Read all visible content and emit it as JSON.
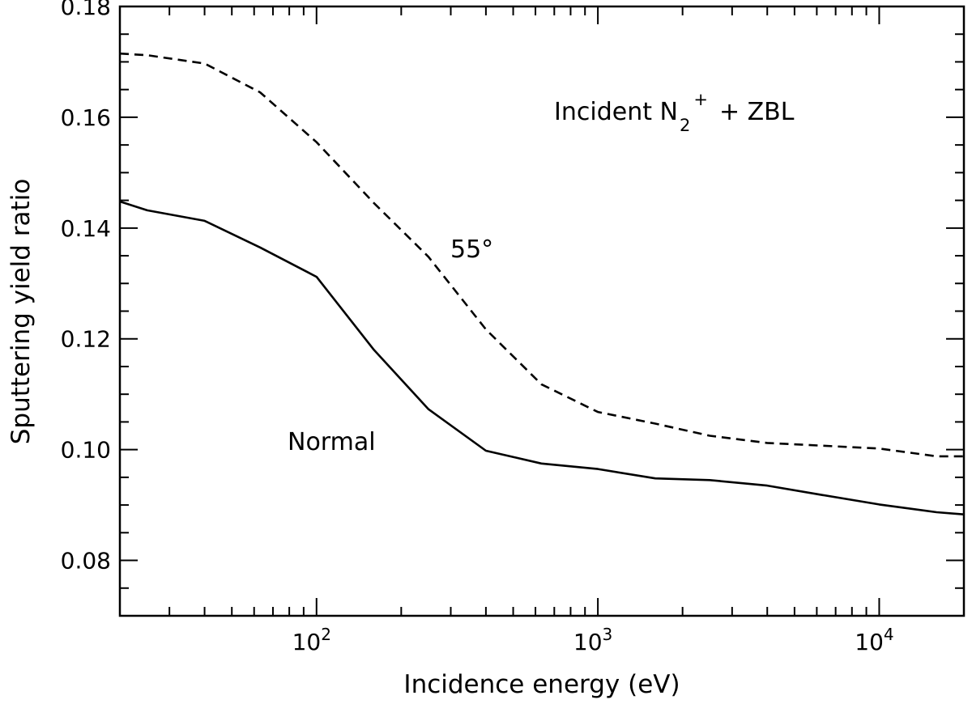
{
  "chart_data": {
    "type": "line",
    "title": "",
    "xlabel": "Incidence energy (eV)",
    "ylabel": "Sputtering yield ratio",
    "xscale": "log",
    "xlim": [
      20,
      20000
    ],
    "ylim": [
      0.07,
      0.18
    ],
    "grid": false,
    "x_tick_labels": [
      {
        "value": 100,
        "base": "10",
        "exp": "2"
      },
      {
        "value": 1000,
        "base": "10",
        "exp": "3"
      },
      {
        "value": 10000,
        "base": "10",
        "exp": "4"
      }
    ],
    "y_ticks": [
      0.08,
      0.1,
      0.12,
      0.14,
      0.16,
      0.18
    ],
    "y_tick_labels": [
      "0.08",
      "0.10",
      "0.12",
      "0.14",
      "0.16",
      "0.18"
    ],
    "series": [
      {
        "name": "Normal",
        "style": "solid",
        "x": [
          20,
          25,
          40,
          63,
          100,
          160,
          250,
          400,
          630,
          1000,
          1600,
          2500,
          4000,
          6300,
          10000,
          16000,
          20000
        ],
        "values": [
          0.1448,
          0.1432,
          0.1413,
          0.1365,
          0.1312,
          0.118,
          0.1073,
          0.0998,
          0.0975,
          0.0965,
          0.0948,
          0.0945,
          0.0935,
          0.0918,
          0.0901,
          0.0887,
          0.0883
        ]
      },
      {
        "name": "55°",
        "style": "dashed",
        "x": [
          20,
          25,
          40,
          63,
          100,
          160,
          250,
          400,
          630,
          1000,
          1600,
          2500,
          4000,
          6300,
          10000,
          16000,
          20000
        ],
        "values": [
          0.1715,
          0.1712,
          0.1697,
          0.1645,
          0.1555,
          0.1445,
          0.1348,
          0.1217,
          0.1118,
          0.1068,
          0.1047,
          0.1025,
          0.1012,
          0.1007,
          0.1002,
          0.0988,
          0.0988
        ]
      }
    ],
    "annotations": {
      "legend_prefix": "Incident N",
      "legend_sub": "2",
      "legend_sup": "+",
      "legend_suffix": "+ ZBL",
      "label_55": "55°",
      "label_normal": "Normal"
    }
  }
}
